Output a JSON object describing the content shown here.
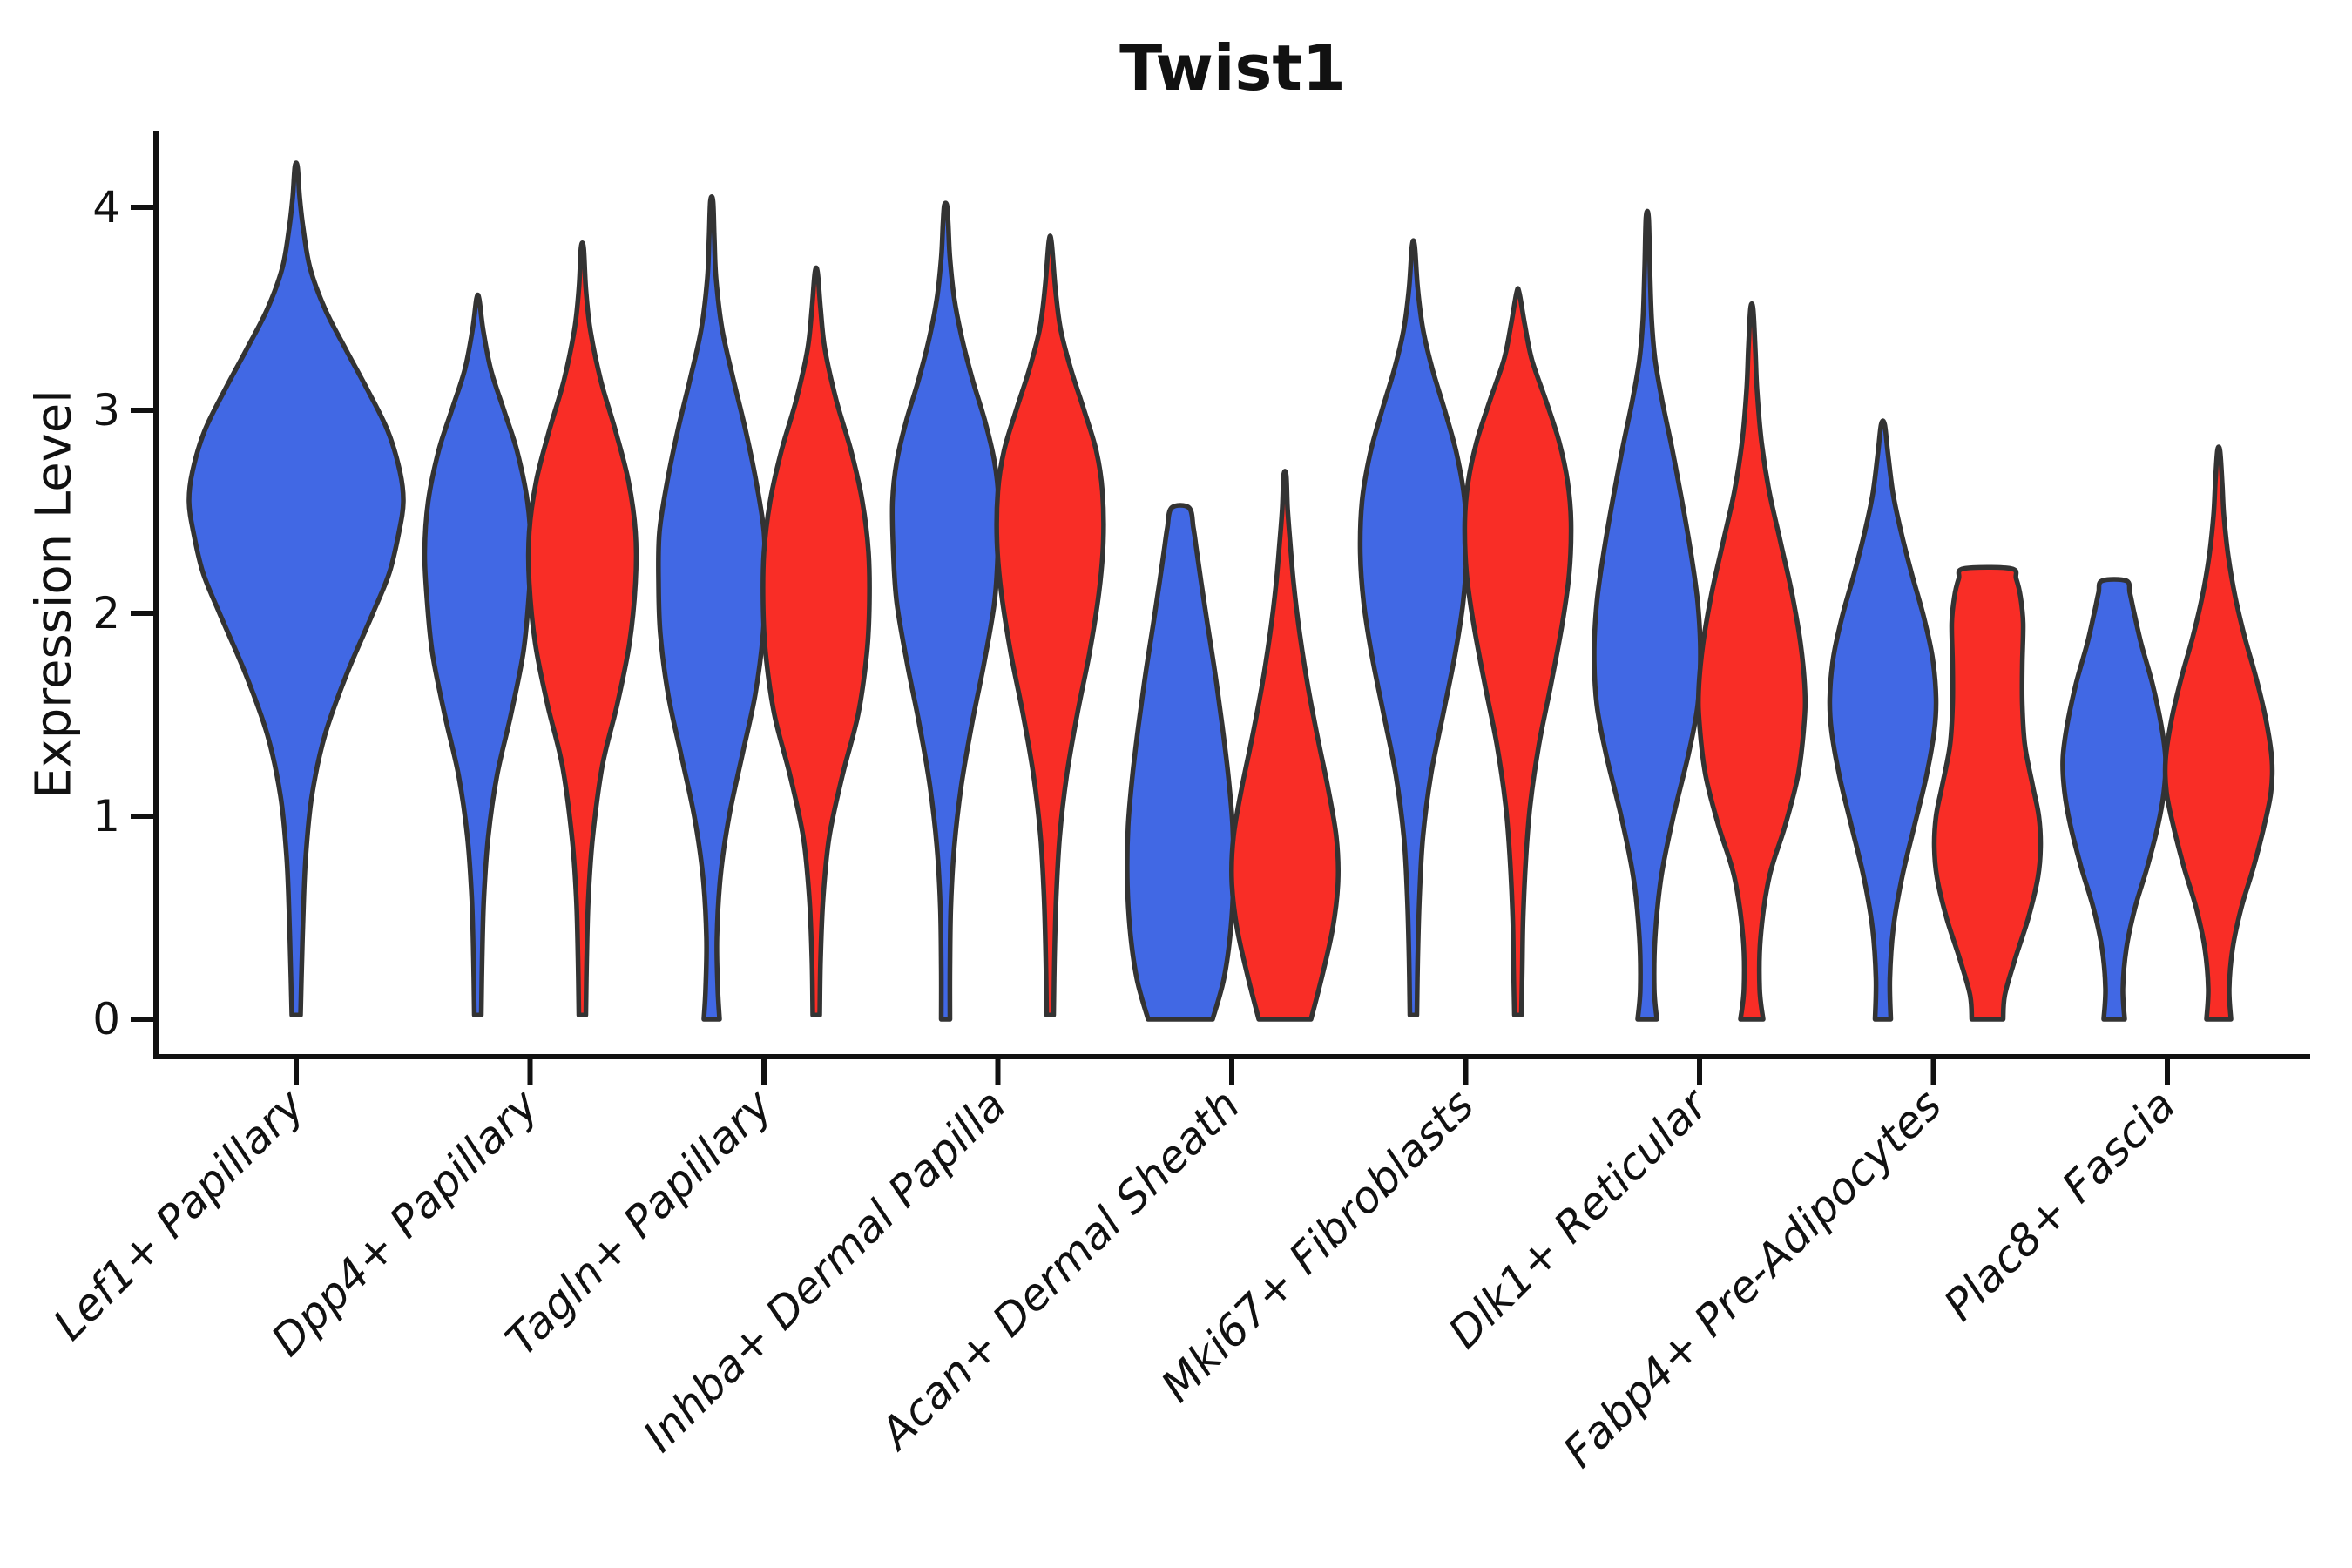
{
  "title": "Twist1",
  "ylabel": "Expression Level",
  "chart_data": {
    "type": "violin",
    "title": "Twist1",
    "xlabel": "",
    "ylabel": "Expression Level",
    "yticks": [
      0,
      1,
      2,
      3,
      4
    ],
    "ylim": [
      0,
      4.2
    ],
    "grid": false,
    "legend": "none",
    "colors": {
      "left_series": "#4168E4",
      "right_series": "#F92D26",
      "violin_outline": "#333333",
      "axis": "#111111"
    },
    "categories": [
      "Lef1+ Papillary",
      "Dpp4+ Papillary",
      "Tagln+ Papillary",
      "Inhba+ Dermal Papilla",
      "Acan+ Dermal Sheath",
      "Mki67+ Fibroblasts",
      "Dlk1+ Reticular",
      "Fabp4+ Pre-Adipocytes",
      "Plac8+ Fascia"
    ],
    "violins": [
      {
        "category_index": 0,
        "side": "single",
        "color_key": "left_series",
        "offset": 0,
        "profile": [
          [
            0.02,
            5
          ],
          [
            0.2,
            6
          ],
          [
            0.5,
            8
          ],
          [
            0.8,
            11
          ],
          [
            1.1,
            18
          ],
          [
            1.4,
            33
          ],
          [
            1.7,
            58
          ],
          [
            2.0,
            88
          ],
          [
            2.2,
            107
          ],
          [
            2.4,
            118
          ],
          [
            2.55,
            123
          ],
          [
            2.7,
            119
          ],
          [
            2.9,
            105
          ],
          [
            3.1,
            82
          ],
          [
            3.3,
            57
          ],
          [
            3.5,
            33
          ],
          [
            3.7,
            16
          ],
          [
            3.9,
            8
          ],
          [
            4.05,
            4
          ],
          [
            4.2,
            1.5
          ]
        ]
      },
      {
        "category_index": 1,
        "side": "left",
        "color_key": "left_series",
        "offset": -60,
        "profile": [
          [
            0.02,
            4
          ],
          [
            0.3,
            5
          ],
          [
            0.6,
            7
          ],
          [
            0.9,
            12
          ],
          [
            1.2,
            22
          ],
          [
            1.5,
            38
          ],
          [
            1.8,
            52
          ],
          [
            2.05,
            58
          ],
          [
            2.3,
            61
          ],
          [
            2.55,
            57
          ],
          [
            2.8,
            45
          ],
          [
            3.0,
            30
          ],
          [
            3.2,
            15
          ],
          [
            3.4,
            6
          ],
          [
            3.55,
            1.5
          ]
        ]
      },
      {
        "category_index": 1,
        "side": "right",
        "color_key": "right_series",
        "offset": 60,
        "profile": [
          [
            0.02,
            4
          ],
          [
            0.3,
            5
          ],
          [
            0.6,
            7
          ],
          [
            0.9,
            12
          ],
          [
            1.25,
            23
          ],
          [
            1.55,
            40
          ],
          [
            1.85,
            54
          ],
          [
            2.15,
            61
          ],
          [
            2.4,
            61
          ],
          [
            2.65,
            53
          ],
          [
            2.9,
            38
          ],
          [
            3.15,
            21
          ],
          [
            3.4,
            9
          ],
          [
            3.6,
            4
          ],
          [
            3.8,
            1.5
          ]
        ]
      },
      {
        "category_index": 2,
        "side": "left",
        "color_key": "left_series",
        "offset": -60,
        "profile": [
          [
            0.0,
            9
          ],
          [
            0.15,
            7
          ],
          [
            0.4,
            6
          ],
          [
            0.7,
            10
          ],
          [
            1.0,
            20
          ],
          [
            1.3,
            35
          ],
          [
            1.6,
            50
          ],
          [
            1.9,
            59
          ],
          [
            2.15,
            61
          ],
          [
            2.4,
            60
          ],
          [
            2.65,
            51
          ],
          [
            2.9,
            39
          ],
          [
            3.15,
            25
          ],
          [
            3.4,
            12
          ],
          [
            3.65,
            5
          ],
          [
            3.85,
            3
          ],
          [
            4.03,
            1.5
          ]
        ]
      },
      {
        "category_index": 2,
        "side": "right",
        "color_key": "right_series",
        "offset": 60,
        "profile": [
          [
            0.02,
            4
          ],
          [
            0.3,
            5
          ],
          [
            0.6,
            8
          ],
          [
            0.9,
            15
          ],
          [
            1.2,
            30
          ],
          [
            1.5,
            48
          ],
          [
            1.8,
            58
          ],
          [
            2.05,
            61
          ],
          [
            2.3,
            60
          ],
          [
            2.55,
            53
          ],
          [
            2.8,
            40
          ],
          [
            3.05,
            23
          ],
          [
            3.3,
            10
          ],
          [
            3.5,
            5
          ],
          [
            3.68,
            1.5
          ]
        ]
      },
      {
        "category_index": 3,
        "side": "left",
        "color_key": "left_series",
        "offset": -60,
        "profile": [
          [
            0.0,
            5
          ],
          [
            0.25,
            5
          ],
          [
            0.55,
            6
          ],
          [
            0.85,
            10
          ],
          [
            1.15,
            18
          ],
          [
            1.45,
            30
          ],
          [
            1.75,
            44
          ],
          [
            2.05,
            56
          ],
          [
            2.3,
            60
          ],
          [
            2.55,
            61
          ],
          [
            2.75,
            56
          ],
          [
            2.95,
            45
          ],
          [
            3.15,
            31
          ],
          [
            3.35,
            19
          ],
          [
            3.55,
            10
          ],
          [
            3.75,
            5
          ],
          [
            3.92,
            3
          ],
          [
            4.01,
            1.5
          ]
        ]
      },
      {
        "category_index": 3,
        "side": "right",
        "color_key": "right_series",
        "offset": 60,
        "profile": [
          [
            0.02,
            4
          ],
          [
            0.3,
            5
          ],
          [
            0.6,
            7
          ],
          [
            0.9,
            11
          ],
          [
            1.2,
            19
          ],
          [
            1.5,
            31
          ],
          [
            1.8,
            45
          ],
          [
            2.1,
            56
          ],
          [
            2.35,
            61
          ],
          [
            2.6,
            60
          ],
          [
            2.8,
            53
          ],
          [
            3.0,
            39
          ],
          [
            3.2,
            24
          ],
          [
            3.4,
            12
          ],
          [
            3.6,
            6
          ],
          [
            3.83,
            1.5
          ]
        ]
      },
      {
        "category_index": 4,
        "side": "left",
        "color_key": "left_series",
        "offset": -59,
        "profile": [
          [
            0.0,
            37
          ],
          [
            0.2,
            50
          ],
          [
            0.45,
            58
          ],
          [
            0.7,
            61
          ],
          [
            0.95,
            60
          ],
          [
            1.2,
            55
          ],
          [
            1.45,
            48
          ],
          [
            1.7,
            40
          ],
          [
            1.95,
            31
          ],
          [
            2.15,
            24
          ],
          [
            2.3,
            19
          ],
          [
            2.42,
            15
          ],
          [
            2.52,
            10
          ]
        ]
      },
      {
        "category_index": 4,
        "side": "right",
        "color_key": "right_series",
        "offset": 61,
        "profile": [
          [
            0.0,
            30
          ],
          [
            0.2,
            42
          ],
          [
            0.45,
            55
          ],
          [
            0.68,
            61
          ],
          [
            0.9,
            59
          ],
          [
            1.15,
            49
          ],
          [
            1.4,
            37
          ],
          [
            1.65,
            26
          ],
          [
            1.9,
            17
          ],
          [
            2.15,
            10
          ],
          [
            2.35,
            6
          ],
          [
            2.52,
            3
          ],
          [
            2.68,
            1.5
          ]
        ]
      },
      {
        "category_index": 5,
        "side": "left",
        "color_key": "left_series",
        "offset": -60,
        "profile": [
          [
            0.02,
            4
          ],
          [
            0.3,
            5
          ],
          [
            0.6,
            7
          ],
          [
            0.9,
            11
          ],
          [
            1.2,
            20
          ],
          [
            1.5,
            34
          ],
          [
            1.8,
            48
          ],
          [
            2.05,
            57
          ],
          [
            2.3,
            61
          ],
          [
            2.55,
            59
          ],
          [
            2.78,
            50
          ],
          [
            3.0,
            36
          ],
          [
            3.2,
            22
          ],
          [
            3.4,
            11
          ],
          [
            3.6,
            5
          ],
          [
            3.81,
            1.5
          ]
        ]
      },
      {
        "category_index": 5,
        "side": "right",
        "color_key": "right_series",
        "offset": 60,
        "profile": [
          [
            0.02,
            4
          ],
          [
            0.25,
            5
          ],
          [
            0.5,
            6
          ],
          [
            0.78,
            9
          ],
          [
            1.05,
            14
          ],
          [
            1.35,
            24
          ],
          [
            1.65,
            38
          ],
          [
            1.95,
            51
          ],
          [
            2.2,
            59
          ],
          [
            2.45,
            61
          ],
          [
            2.65,
            57
          ],
          [
            2.85,
            47
          ],
          [
            3.05,
            32
          ],
          [
            3.25,
            16
          ],
          [
            3.42,
            8
          ],
          [
            3.58,
            1.5
          ]
        ]
      },
      {
        "category_index": 6,
        "side": "left",
        "color_key": "left_series",
        "offset": -60,
        "profile": [
          [
            0.0,
            11
          ],
          [
            0.15,
            8
          ],
          [
            0.4,
            9
          ],
          [
            0.7,
            16
          ],
          [
            1.0,
            30
          ],
          [
            1.3,
            47
          ],
          [
            1.55,
            58
          ],
          [
            1.8,
            61
          ],
          [
            2.05,
            58
          ],
          [
            2.3,
            50
          ],
          [
            2.55,
            40
          ],
          [
            2.8,
            29
          ],
          [
            3.05,
            17
          ],
          [
            3.25,
            9
          ],
          [
            3.45,
            5
          ],
          [
            3.7,
            3
          ],
          [
            3.95,
            1.5
          ]
        ]
      },
      {
        "category_index": 6,
        "side": "right",
        "color_key": "right_series",
        "offset": 60,
        "profile": [
          [
            0.0,
            13
          ],
          [
            0.15,
            9
          ],
          [
            0.4,
            10
          ],
          [
            0.7,
            20
          ],
          [
            0.95,
            38
          ],
          [
            1.2,
            53
          ],
          [
            1.45,
            60
          ],
          [
            1.62,
            61
          ],
          [
            1.85,
            56
          ],
          [
            2.1,
            46
          ],
          [
            2.35,
            33
          ],
          [
            2.6,
            20
          ],
          [
            2.85,
            11
          ],
          [
            3.1,
            6
          ],
          [
            3.3,
            4
          ],
          [
            3.5,
            1.5
          ]
        ]
      },
      {
        "category_index": 7,
        "side": "left",
        "color_key": "left_series",
        "offset": -58,
        "profile": [
          [
            0.0,
            9
          ],
          [
            0.2,
            8
          ],
          [
            0.45,
            12
          ],
          [
            0.7,
            22
          ],
          [
            0.95,
            36
          ],
          [
            1.2,
            50
          ],
          [
            1.42,
            59
          ],
          [
            1.58,
            61
          ],
          [
            1.78,
            57
          ],
          [
            1.98,
            47
          ],
          [
            2.18,
            34
          ],
          [
            2.38,
            22
          ],
          [
            2.58,
            12
          ],
          [
            2.78,
            6
          ],
          [
            2.93,
            2
          ]
        ]
      },
      {
        "category_index": 7,
        "side": "right",
        "color_key": "right_series",
        "offset": 62,
        "profile": [
          [
            0.0,
            18
          ],
          [
            0.12,
            20
          ],
          [
            0.3,
            32
          ],
          [
            0.5,
            47
          ],
          [
            0.7,
            58
          ],
          [
            0.85,
            61
          ],
          [
            1.0,
            59
          ],
          [
            1.15,
            52
          ],
          [
            1.35,
            43
          ],
          [
            1.55,
            40
          ],
          [
            1.75,
            40
          ],
          [
            1.95,
            41
          ],
          [
            2.08,
            38
          ],
          [
            2.17,
            33
          ],
          [
            2.22,
            27
          ]
        ]
      },
      {
        "category_index": 8,
        "side": "left",
        "color_key": "left_series",
        "offset": -61,
        "profile": [
          [
            0.0,
            12
          ],
          [
            0.15,
            10
          ],
          [
            0.35,
            14
          ],
          [
            0.55,
            24
          ],
          [
            0.75,
            38
          ],
          [
            0.95,
            50
          ],
          [
            1.12,
            57
          ],
          [
            1.28,
            59
          ],
          [
            1.45,
            54
          ],
          [
            1.65,
            44
          ],
          [
            1.85,
            31
          ],
          [
            2.0,
            23
          ],
          [
            2.1,
            18
          ],
          [
            2.16,
            14
          ]
        ]
      },
      {
        "category_index": 8,
        "side": "right",
        "color_key": "right_series",
        "offset": 59,
        "profile": [
          [
            0.0,
            14
          ],
          [
            0.15,
            12
          ],
          [
            0.35,
            16
          ],
          [
            0.55,
            26
          ],
          [
            0.75,
            40
          ],
          [
            0.95,
            52
          ],
          [
            1.12,
            60
          ],
          [
            1.28,
            61
          ],
          [
            1.48,
            54
          ],
          [
            1.68,
            43
          ],
          [
            1.88,
            30
          ],
          [
            2.08,
            19
          ],
          [
            2.28,
            11
          ],
          [
            2.48,
            6
          ],
          [
            2.64,
            4
          ],
          [
            2.8,
            1.5
          ]
        ]
      }
    ]
  }
}
